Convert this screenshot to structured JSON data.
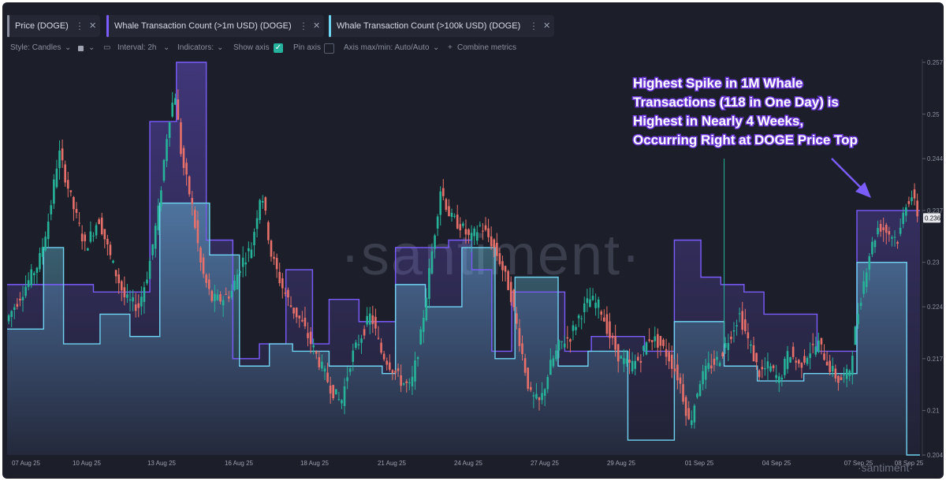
{
  "tabs": [
    {
      "label": "Price (DOGE)",
      "color": "#8a8fa0",
      "dots": "⋮",
      "close": "✕"
    },
    {
      "label": "Whale Transaction Count (>1m USD) (DOGE)",
      "color": "#7b5cff",
      "dots": "⋮",
      "close": "✕"
    },
    {
      "label": "Whale Transaction Count (>100k USD) (DOGE)",
      "color": "#6fd3f2",
      "dots": "⋮",
      "close": "✕"
    }
  ],
  "toolbar": {
    "style": "Style: Candles",
    "interval": "Interval: 2h",
    "indicators": "Indicators:",
    "show_axis": "Show axis",
    "pin_axis": "Pin axis",
    "axis_minmax": "Axis max/min: Auto/Auto",
    "combine": "Combine metrics",
    "dropdown_glyph": "⌄",
    "check_glyph": "✓",
    "plus_glyph": "+"
  },
  "watermark": "·santiment·",
  "watermark_small": "·santiment·",
  "annotation": {
    "lines": [
      "Highest Spike in 1M Whale",
      "Transactions (118 in One Day) is",
      "Highest in Nearly 4 Weeks,",
      "Occurring Right at DOGE Price Top"
    ],
    "arrow_color": "#7b5cff"
  },
  "chart_data": {
    "type": "line",
    "x_labels": [
      "07 Aug 25",
      "10 Aug 25",
      "13 Aug 25",
      "16 Aug 25",
      "18 Aug 25",
      "21 Aug 25",
      "24 Aug 25",
      "27 Aug 25",
      "29 Aug 25",
      "01 Sep 25",
      "04 Sep 25",
      "07 Sep 25",
      "08 Sep 25"
    ],
    "y_ticks": [
      "0.257",
      "0.25",
      "0.244",
      "0.237",
      "0.23",
      "0.224",
      "0.217",
      "0.21",
      "0.204"
    ],
    "ylim": [
      0.204,
      0.257
    ],
    "current_price_label": "0.236",
    "colors": {
      "up": "#26b39a",
      "down": "#e8706a",
      "whale_1m": "#7b5cff",
      "whale_100k": "#6fd3f2"
    },
    "price_series": {
      "name": "Price (DOGE)",
      "points": [
        [
          0,
          0.222
        ],
        [
          0.5,
          0.226
        ],
        [
          1,
          0.23
        ],
        [
          1.3,
          0.236
        ],
        [
          1.6,
          0.245
        ],
        [
          2,
          0.238
        ],
        [
          2.4,
          0.232
        ],
        [
          2.8,
          0.236
        ],
        [
          3.2,
          0.23
        ],
        [
          3.6,
          0.225
        ],
        [
          4,
          0.224
        ],
        [
          4.3,
          0.229
        ],
        [
          4.6,
          0.237
        ],
        [
          4.9,
          0.249
        ],
        [
          5.1,
          0.253
        ],
        [
          5.3,
          0.244
        ],
        [
          5.6,
          0.238
        ],
        [
          5.9,
          0.229
        ],
        [
          6.2,
          0.225
        ],
        [
          6.5,
          0.225
        ],
        [
          6.8,
          0.226
        ],
        [
          7.1,
          0.23
        ],
        [
          7.4,
          0.232
        ],
        [
          7.7,
          0.24
        ],
        [
          8,
          0.231
        ],
        [
          8.3,
          0.227
        ],
        [
          8.6,
          0.224
        ],
        [
          8.9,
          0.222
        ],
        [
          9.2,
          0.219
        ],
        [
          9.5,
          0.216
        ],
        [
          9.8,
          0.213
        ],
        [
          10.1,
          0.211
        ],
        [
          10.4,
          0.217
        ],
        [
          10.7,
          0.22
        ],
        [
          11,
          0.223
        ],
        [
          11.3,
          0.218
        ],
        [
          11.6,
          0.216
        ],
        [
          11.9,
          0.214
        ],
        [
          12.2,
          0.213
        ],
        [
          12.5,
          0.22
        ],
        [
          12.8,
          0.23
        ],
        [
          13.1,
          0.24
        ],
        [
          13.4,
          0.236
        ],
        [
          13.7,
          0.235
        ],
        [
          14,
          0.233
        ],
        [
          14.3,
          0.235
        ],
        [
          14.6,
          0.233
        ],
        [
          14.9,
          0.23
        ],
        [
          15.2,
          0.226
        ],
        [
          15.5,
          0.219
        ],
        [
          15.8,
          0.212
        ],
        [
          16.1,
          0.211
        ],
        [
          16.4,
          0.216
        ],
        [
          16.7,
          0.219
        ],
        [
          17,
          0.22
        ],
        [
          17.3,
          0.223
        ],
        [
          17.6,
          0.225
        ],
        [
          17.9,
          0.224
        ],
        [
          18.2,
          0.22
        ],
        [
          18.5,
          0.217
        ],
        [
          18.8,
          0.216
        ],
        [
          19.1,
          0.217
        ],
        [
          19.4,
          0.22
        ],
        [
          19.7,
          0.219
        ],
        [
          20,
          0.217
        ],
        [
          20.3,
          0.214
        ],
        [
          20.6,
          0.208
        ],
        [
          20.9,
          0.214
        ],
        [
          21.2,
          0.216
        ],
        [
          21.5,
          0.217
        ],
        [
          21.8,
          0.22
        ],
        [
          22.1,
          0.223
        ],
        [
          22.4,
          0.219
        ],
        [
          22.7,
          0.215
        ],
        [
          23,
          0.216
        ],
        [
          23.3,
          0.214
        ],
        [
          23.6,
          0.218
        ],
        [
          23.9,
          0.216
        ],
        [
          24.2,
          0.218
        ],
        [
          24.5,
          0.219
        ],
        [
          24.8,
          0.216
        ],
        [
          25.1,
          0.214
        ],
        [
          25.4,
          0.215
        ],
        [
          25.7,
          0.224
        ],
        [
          26,
          0.231
        ],
        [
          26.3,
          0.235
        ],
        [
          26.6,
          0.234
        ],
        [
          26.9,
          0.233
        ],
        [
          27.1,
          0.238
        ],
        [
          27.3,
          0.239
        ],
        [
          27.5,
          0.236
        ]
      ]
    },
    "series": [
      {
        "name": "Whale Transaction Count (>1m USD) (DOGE)",
        "steps": [
          [
            0,
            0.227
          ],
          [
            1.3,
            0.227
          ],
          [
            2.4,
            0.227
          ],
          [
            2.6,
            0.226
          ],
          [
            3.5,
            0.226
          ],
          [
            4.3,
            0.249
          ],
          [
            5.1,
            0.257
          ],
          [
            6,
            0.233
          ],
          [
            6.6,
            0.233
          ],
          [
            6.8,
            0.217
          ],
          [
            7.6,
            0.219
          ],
          [
            8.4,
            0.229
          ],
          [
            9.2,
            0.219
          ],
          [
            9.7,
            0.225
          ],
          [
            10.2,
            0.225
          ],
          [
            10.6,
            0.222
          ],
          [
            11.2,
            0.222
          ],
          [
            11.7,
            0.232
          ],
          [
            12.6,
            0.232
          ],
          [
            13.3,
            0.233
          ],
          [
            14,
            0.229
          ],
          [
            14.6,
            0.218
          ],
          [
            15.2,
            0.226
          ],
          [
            16.2,
            0.226
          ],
          [
            16.8,
            0.218
          ],
          [
            17.6,
            0.22
          ],
          [
            18.4,
            0.22
          ],
          [
            19.2,
            0.218
          ],
          [
            20.1,
            0.233
          ],
          [
            20.9,
            0.228
          ],
          [
            21.5,
            0.227
          ],
          [
            22.2,
            0.226
          ],
          [
            22.8,
            0.223
          ],
          [
            23.5,
            0.223
          ],
          [
            24.4,
            0.218
          ],
          [
            25.1,
            0.218
          ],
          [
            25.6,
            0.237
          ],
          [
            27.5,
            0.237
          ]
        ]
      },
      {
        "name": "Whale Transaction Count (>100k USD) (DOGE)",
        "steps": [
          [
            0,
            0.221
          ],
          [
            0.8,
            0.221
          ],
          [
            1.1,
            0.232
          ],
          [
            1.7,
            0.219
          ],
          [
            2.4,
            0.219
          ],
          [
            2.8,
            0.223
          ],
          [
            3.5,
            0.223
          ],
          [
            3.7,
            0.22
          ],
          [
            4.3,
            0.22
          ],
          [
            4.6,
            0.238
          ],
          [
            6.1,
            0.231
          ],
          [
            6.7,
            0.231
          ],
          [
            7,
            0.216
          ],
          [
            7.6,
            0.216
          ],
          [
            7.9,
            0.219
          ],
          [
            8.6,
            0.218
          ],
          [
            9.2,
            0.218
          ],
          [
            9.7,
            0.216
          ],
          [
            11.3,
            0.215
          ],
          [
            11.7,
            0.227
          ],
          [
            12.6,
            0.224
          ],
          [
            13.7,
            0.232
          ],
          [
            14.3,
            0.232
          ],
          [
            14.7,
            0.217
          ],
          [
            15.3,
            0.228
          ],
          [
            16.1,
            0.228
          ],
          [
            16.6,
            0.216
          ],
          [
            17.5,
            0.218
          ],
          [
            18.4,
            0.218
          ],
          [
            18.7,
            0.206
          ],
          [
            19.6,
            0.206
          ],
          [
            20.1,
            0.222
          ],
          [
            21.1,
            0.222
          ],
          [
            21.6,
            0.216
          ],
          [
            22.6,
            0.214
          ],
          [
            23.4,
            0.214
          ],
          [
            24,
            0.215
          ],
          [
            25.3,
            0.215
          ],
          [
            25.6,
            0.23
          ],
          [
            26.8,
            0.23
          ],
          [
            27.1,
            0.204
          ]
        ]
      }
    ]
  }
}
